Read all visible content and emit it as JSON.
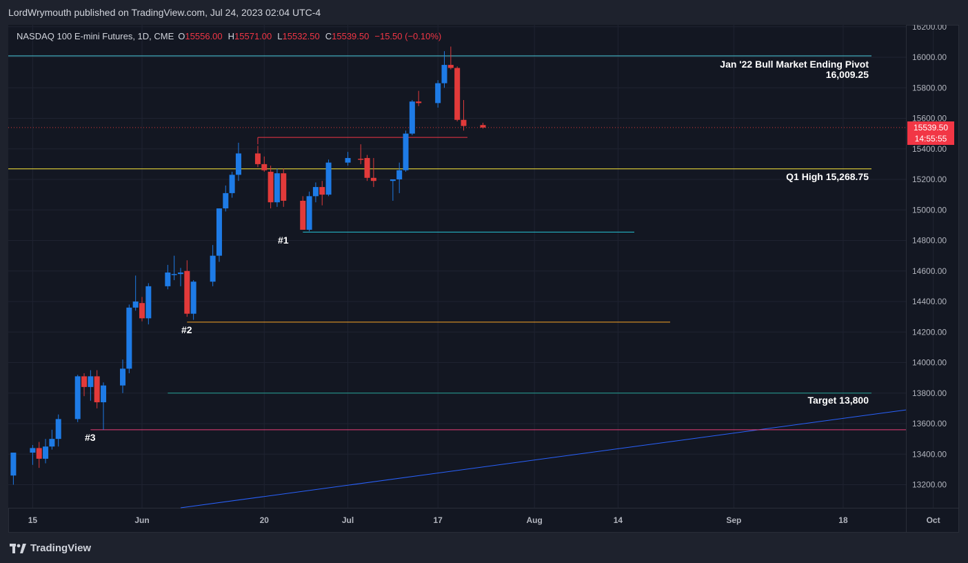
{
  "header": {
    "publisher": "LordWrymouth published on TradingView.com, Jul 24, 2023 02:04 UTC-4"
  },
  "legend": {
    "symbol": "NASDAQ 100 E-mini Futures, 1D, CME",
    "o_label": "O",
    "o_value": "15556.00",
    "h_label": "H",
    "h_value": "15571.00",
    "l_label": "L",
    "l_value": "15532.50",
    "c_label": "C",
    "c_value": "15539.50",
    "change": "−15.50 (−0.10%)"
  },
  "price_tag": {
    "price": "15539.50",
    "countdown": "14:55:55"
  },
  "annotations": {
    "pivot_title": "Jan '22 Bull Market Ending Pivot",
    "pivot_value": "16,009.25",
    "q1_high": "Q1 High 15,268.75",
    "target": "Target 13,800",
    "m1": "#1",
    "m2": "#2",
    "m3": "#3"
  },
  "branding": {
    "name": "TradingView"
  },
  "colors": {
    "up": "#2962ff",
    "up_body": "#1e7be6",
    "down": "#e23a3a",
    "background": "#131722",
    "grid": "#1f2331",
    "pivot_line": "#4dd0e1",
    "q1_line": "#ffeb3b",
    "level1_line": "#26c6da",
    "level2_line": "#ffa726",
    "target_line": "#26a69a",
    "level3_line": "#ec407a",
    "trend_line": "#2962ff",
    "resistance_line": "#f23645"
  },
  "chart_data": {
    "type": "candlestick",
    "title": "NASDAQ 100 E-mini Futures, 1D, CME",
    "y_ticks": [
      "16200.00",
      "16000.00",
      "15800.00",
      "15600.00",
      "15400.00",
      "15200.00",
      "15000.00",
      "14800.00",
      "14600.00",
      "14400.00",
      "14200.00",
      "14000.00",
      "13800.00",
      "13600.00",
      "13400.00",
      "13200.00"
    ],
    "ylim": [
      13050,
      16250
    ],
    "x_ticks": [
      {
        "label": "15",
        "date": "2023-05-15"
      },
      {
        "label": "Jun",
        "date": "2023-06-01"
      },
      {
        "label": "20",
        "date": "2023-06-20"
      },
      {
        "label": "Jul",
        "date": "2023-07-03"
      },
      {
        "label": "17",
        "date": "2023-07-17"
      },
      {
        "label": "Aug",
        "date": "2023-08-01"
      },
      {
        "label": "14",
        "date": "2023-08-14"
      },
      {
        "label": "Sep",
        "date": "2023-09-01"
      },
      {
        "label": "18",
        "date": "2023-09-18"
      },
      {
        "label": "Oct",
        "date": "2023-10-02"
      }
    ],
    "candles": [
      {
        "date": "2023-05-12",
        "o": 13260,
        "h": 13410,
        "l": 13200,
        "c": 13410
      },
      {
        "date": "2023-05-15",
        "o": 13410,
        "h": 13460,
        "l": 13330,
        "c": 13440
      },
      {
        "date": "2023-05-16",
        "o": 13440,
        "h": 13480,
        "l": 13310,
        "c": 13370
      },
      {
        "date": "2023-05-17",
        "o": 13370,
        "h": 13500,
        "l": 13340,
        "c": 13450
      },
      {
        "date": "2023-05-18",
        "o": 13450,
        "h": 13560,
        "l": 13430,
        "c": 13500
      },
      {
        "date": "2023-05-19",
        "o": 13500,
        "h": 13660,
        "l": 13450,
        "c": 13630
      },
      {
        "date": "2023-05-22",
        "o": 13630,
        "h": 13920,
        "l": 13610,
        "c": 13910
      },
      {
        "date": "2023-05-23",
        "o": 13910,
        "h": 13930,
        "l": 13780,
        "c": 13840
      },
      {
        "date": "2023-05-24",
        "o": 13840,
        "h": 13950,
        "l": 13750,
        "c": 13910
      },
      {
        "date": "2023-05-25",
        "o": 13910,
        "h": 13950,
        "l": 13700,
        "c": 13740
      },
      {
        "date": "2023-05-26",
        "o": 13740,
        "h": 13870,
        "l": 13560,
        "c": 13850
      },
      {
        "date": "2023-05-29",
        "o": 13850,
        "h": 14020,
        "l": 13800,
        "c": 13960
      },
      {
        "date": "2023-05-30",
        "o": 13960,
        "h": 14380,
        "l": 13930,
        "c": 14360
      },
      {
        "date": "2023-05-31",
        "o": 14360,
        "h": 14570,
        "l": 14340,
        "c": 14400
      },
      {
        "date": "2023-06-01",
        "o": 14390,
        "h": 14430,
        "l": 14270,
        "c": 14290
      },
      {
        "date": "2023-06-02",
        "o": 14290,
        "h": 14520,
        "l": 14250,
        "c": 14500
      },
      {
        "date": "2023-06-05",
        "o": 14500,
        "h": 14640,
        "l": 14480,
        "c": 14590
      },
      {
        "date": "2023-06-06",
        "o": 14580,
        "h": 14700,
        "l": 14540,
        "c": 14580
      },
      {
        "date": "2023-06-07",
        "o": 14580,
        "h": 14620,
        "l": 14500,
        "c": 14590
      },
      {
        "date": "2023-06-08",
        "o": 14600,
        "h": 14670,
        "l": 14300,
        "c": 14320
      },
      {
        "date": "2023-06-09",
        "o": 14320,
        "h": 14540,
        "l": 14280,
        "c": 14530
      },
      {
        "date": "2023-06-12",
        "o": 14530,
        "h": 14770,
        "l": 14500,
        "c": 14700
      },
      {
        "date": "2023-06-13",
        "o": 14700,
        "h": 15010,
        "l": 14660,
        "c": 15010
      },
      {
        "date": "2023-06-14",
        "o": 15010,
        "h": 15160,
        "l": 14990,
        "c": 15110
      },
      {
        "date": "2023-06-15",
        "o": 15110,
        "h": 15250,
        "l": 15080,
        "c": 15230
      },
      {
        "date": "2023-06-16",
        "o": 15230,
        "h": 15440,
        "l": 15190,
        "c": 15370
      },
      {
        "date": "2023-06-19",
        "o": 15370,
        "h": 15420,
        "l": 15280,
        "c": 15300
      },
      {
        "date": "2023-06-20",
        "o": 15300,
        "h": 15350,
        "l": 15250,
        "c": 15260
      },
      {
        "date": "2023-06-21",
        "o": 15250,
        "h": 15290,
        "l": 15010,
        "c": 15050
      },
      {
        "date": "2023-06-22",
        "o": 15050,
        "h": 15270,
        "l": 15020,
        "c": 15240
      },
      {
        "date": "2023-06-23",
        "o": 15240,
        "h": 15270,
        "l": 15020,
        "c": 15060
      },
      {
        "date": "2023-06-26",
        "o": 15060,
        "h": 15090,
        "l": 14870,
        "c": 14870
      },
      {
        "date": "2023-06-27",
        "o": 14870,
        "h": 15120,
        "l": 14860,
        "c": 15090
      },
      {
        "date": "2023-06-28",
        "o": 15090,
        "h": 15180,
        "l": 15050,
        "c": 15150
      },
      {
        "date": "2023-06-29",
        "o": 15150,
        "h": 15190,
        "l": 15030,
        "c": 15100
      },
      {
        "date": "2023-06-30",
        "o": 15100,
        "h": 15330,
        "l": 15090,
        "c": 15310
      },
      {
        "date": "2023-07-03",
        "o": 15310,
        "h": 15380,
        "l": 15290,
        "c": 15340
      },
      {
        "date": "2023-07-05",
        "o": 15335,
        "h": 15430,
        "l": 15300,
        "c": 15330
      },
      {
        "date": "2023-07-06",
        "o": 15340,
        "h": 15360,
        "l": 15190,
        "c": 15210
      },
      {
        "date": "2023-07-07",
        "o": 15210,
        "h": 15340,
        "l": 15150,
        "c": 15190
      },
      {
        "date": "2023-07-10",
        "o": 15190,
        "h": 15200,
        "l": 15060,
        "c": 15200
      },
      {
        "date": "2023-07-11",
        "o": 15200,
        "h": 15310,
        "l": 15110,
        "c": 15260
      },
      {
        "date": "2023-07-12",
        "o": 15260,
        "h": 15520,
        "l": 15250,
        "c": 15500
      },
      {
        "date": "2023-07-13",
        "o": 15500,
        "h": 15720,
        "l": 15490,
        "c": 15710
      },
      {
        "date": "2023-07-14",
        "o": 15710,
        "h": 15780,
        "l": 15680,
        "c": 15700
      },
      {
        "date": "2023-07-17",
        "o": 15700,
        "h": 15850,
        "l": 15670,
        "c": 15830
      },
      {
        "date": "2023-07-18",
        "o": 15830,
        "h": 16040,
        "l": 15800,
        "c": 15950
      },
      {
        "date": "2023-07-19",
        "o": 15950,
        "h": 16070,
        "l": 15920,
        "c": 15930
      },
      {
        "date": "2023-07-20",
        "o": 15930,
        "h": 15940,
        "l": 15580,
        "c": 15590
      },
      {
        "date": "2023-07-21",
        "o": 15590,
        "h": 15720,
        "l": 15520,
        "c": 15550
      },
      {
        "date": "2023-07-24",
        "o": 15556,
        "h": 15571,
        "l": 15532.5,
        "c": 15539.5
      }
    ],
    "levels": [
      {
        "name": "Jan '22 Bull Market Ending Pivot",
        "price": 16009.25
      },
      {
        "name": "Q1 High",
        "price": 15268.75
      },
      {
        "name": "#1",
        "price": 14855
      },
      {
        "name": "#2",
        "price": 14265
      },
      {
        "name": "Target",
        "price": 13800
      },
      {
        "name": "#3",
        "price": 13560
      }
    ]
  }
}
